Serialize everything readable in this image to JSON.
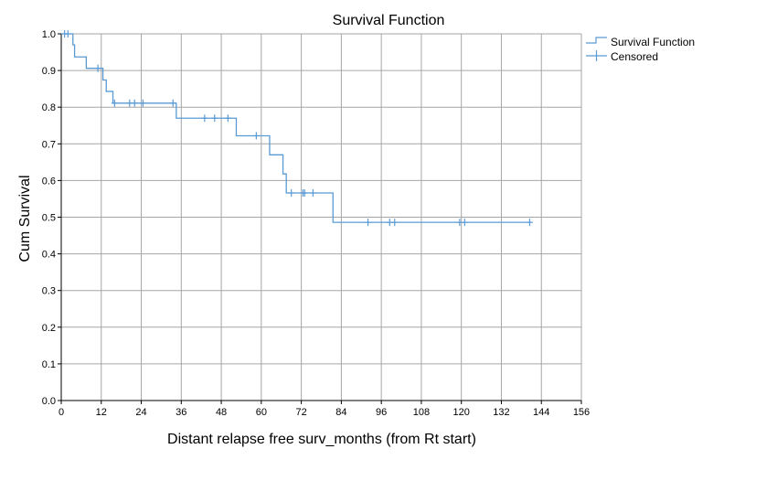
{
  "chart_data": {
    "type": "line",
    "title": "Survival Function",
    "xlabel": "Distant relapse free surv_months (from Rt start)",
    "ylabel": "Cum Survival",
    "xlim": [
      0,
      156
    ],
    "ylim": [
      0,
      1.0
    ],
    "x_ticks": [
      0,
      12,
      24,
      36,
      48,
      60,
      72,
      84,
      96,
      108,
      120,
      132,
      144,
      156
    ],
    "y_ticks": [
      "0.0",
      "0.1",
      "0.2",
      "0.3",
      "0.4",
      "0.5",
      "0.6",
      "0.7",
      "0.8",
      "0.9",
      "1.0"
    ],
    "grid": true,
    "legend_position": "top-right",
    "line_color": "#5b9bd5",
    "series": [
      {
        "name": "Survival Function",
        "kind": "step",
        "points": [
          [
            0,
            1.0
          ],
          [
            3.5,
            1.0
          ],
          [
            3.5,
            0.97
          ],
          [
            4,
            0.97
          ],
          [
            4,
            0.937
          ],
          [
            7.5,
            0.937
          ],
          [
            7.5,
            0.906
          ],
          [
            12.5,
            0.906
          ],
          [
            12.5,
            0.874
          ],
          [
            13.5,
            0.874
          ],
          [
            13.5,
            0.843
          ],
          [
            15.5,
            0.843
          ],
          [
            15.5,
            0.811
          ],
          [
            34.5,
            0.811
          ],
          [
            34.5,
            0.77
          ],
          [
            52.5,
            0.77
          ],
          [
            52.5,
            0.722
          ],
          [
            62.5,
            0.722
          ],
          [
            62.5,
            0.67
          ],
          [
            66.5,
            0.67
          ],
          [
            66.5,
            0.618
          ],
          [
            67.5,
            0.618
          ],
          [
            67.5,
            0.566
          ],
          [
            81.5,
            0.566
          ],
          [
            81.5,
            0.486
          ],
          [
            141,
            0.486
          ]
        ]
      },
      {
        "name": "Censored",
        "kind": "marker",
        "points": [
          [
            1,
            1.0
          ],
          [
            2,
            1.0
          ],
          [
            11,
            0.906
          ],
          [
            16,
            0.811
          ],
          [
            20.5,
            0.811
          ],
          [
            22,
            0.811
          ],
          [
            24.5,
            0.811
          ],
          [
            33.5,
            0.811
          ],
          [
            43,
            0.77
          ],
          [
            46,
            0.77
          ],
          [
            50,
            0.77
          ],
          [
            58.5,
            0.722
          ],
          [
            69,
            0.566
          ],
          [
            72.5,
            0.566
          ],
          [
            73,
            0.566
          ],
          [
            75.5,
            0.566
          ],
          [
            92,
            0.486
          ],
          [
            98.5,
            0.486
          ],
          [
            100,
            0.486
          ],
          [
            119.5,
            0.486
          ],
          [
            121,
            0.486
          ],
          [
            140.5,
            0.486
          ]
        ]
      }
    ]
  }
}
